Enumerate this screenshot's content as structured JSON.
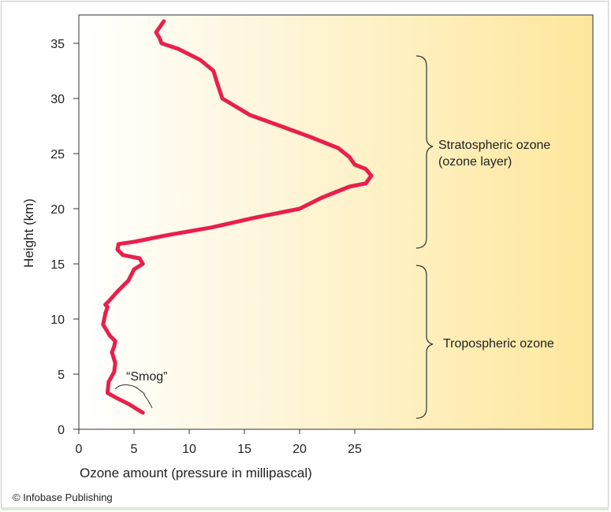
{
  "chart_data": {
    "type": "line",
    "title": "",
    "xlabel": "Ozone amount (pressure in millipascal)",
    "ylabel": "Height (km)",
    "xlim": [
      0,
      25
    ],
    "ylim": [
      0,
      37
    ],
    "xticks": [
      0,
      5,
      10,
      15,
      20,
      25
    ],
    "yticks": [
      0,
      5,
      10,
      15,
      20,
      25,
      30,
      35
    ],
    "series": [
      {
        "color": "#e8204b",
        "x": [
          5.8,
          4.5,
          3.5,
          2.6,
          2.7,
          3.2,
          3.3,
          3.0,
          3.2,
          3.3,
          2.8,
          2.5,
          2.2,
          2.4,
          2.6,
          2.4,
          2.7,
          3.5,
          4.5,
          5.0,
          5.8,
          5.5,
          4.0,
          3.5,
          3.6,
          5.0,
          8.0,
          12.0,
          16.0,
          20.0,
          22.0,
          24.5,
          26.0,
          26.5,
          26.0,
          25.0,
          24.5,
          23.5,
          21.0,
          18.0,
          15.5,
          13.0,
          12.5,
          12.2,
          11.0,
          9.0,
          7.5,
          7.3,
          7.0,
          7.7
        ],
        "y": [
          1.5,
          2.3,
          2.8,
          3.3,
          4.3,
          5.2,
          6.0,
          7.0,
          7.5,
          8.0,
          8.5,
          9.0,
          9.5,
          10.5,
          11.1,
          11.3,
          11.6,
          12.5,
          13.5,
          14.5,
          15.0,
          15.5,
          15.8,
          16.3,
          16.8,
          17.0,
          17.6,
          18.3,
          19.2,
          20.0,
          21.0,
          22.0,
          22.3,
          23.0,
          23.6,
          24.0,
          24.7,
          25.5,
          26.5,
          27.6,
          28.5,
          30.0,
          31.5,
          32.5,
          33.5,
          34.5,
          35.0,
          35.5,
          36.0,
          37.0
        ]
      }
    ],
    "annotations": [
      {
        "text": "Stratospheric ozone",
        "y_from": 16.5,
        "y_to": 34.0
      },
      {
        "text": "(ozone layer)"
      },
      {
        "text": "Tropospheric ozone",
        "y_from": 1.0,
        "y_to": 14.8
      },
      {
        "text": "“Smog”"
      }
    ],
    "background_gradient": [
      "#ffffff",
      "#fde79c"
    ],
    "grid": false,
    "legend": "none"
  },
  "credit": "© Infobase Publishing"
}
